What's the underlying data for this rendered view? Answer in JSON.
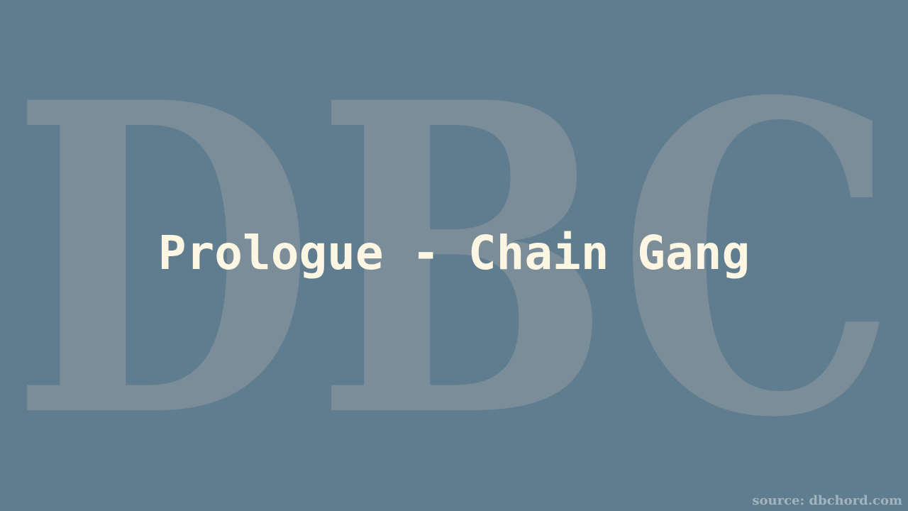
{
  "colors": {
    "background": "#5f7d8e",
    "watermark": "#7a8d99",
    "title": "#fdf6e3",
    "source": "#a3b4be"
  },
  "watermark": {
    "text": "DBC"
  },
  "title": {
    "text": "Prologue - Chain Gang"
  },
  "footer": {
    "source": "source: dbchord.com"
  }
}
